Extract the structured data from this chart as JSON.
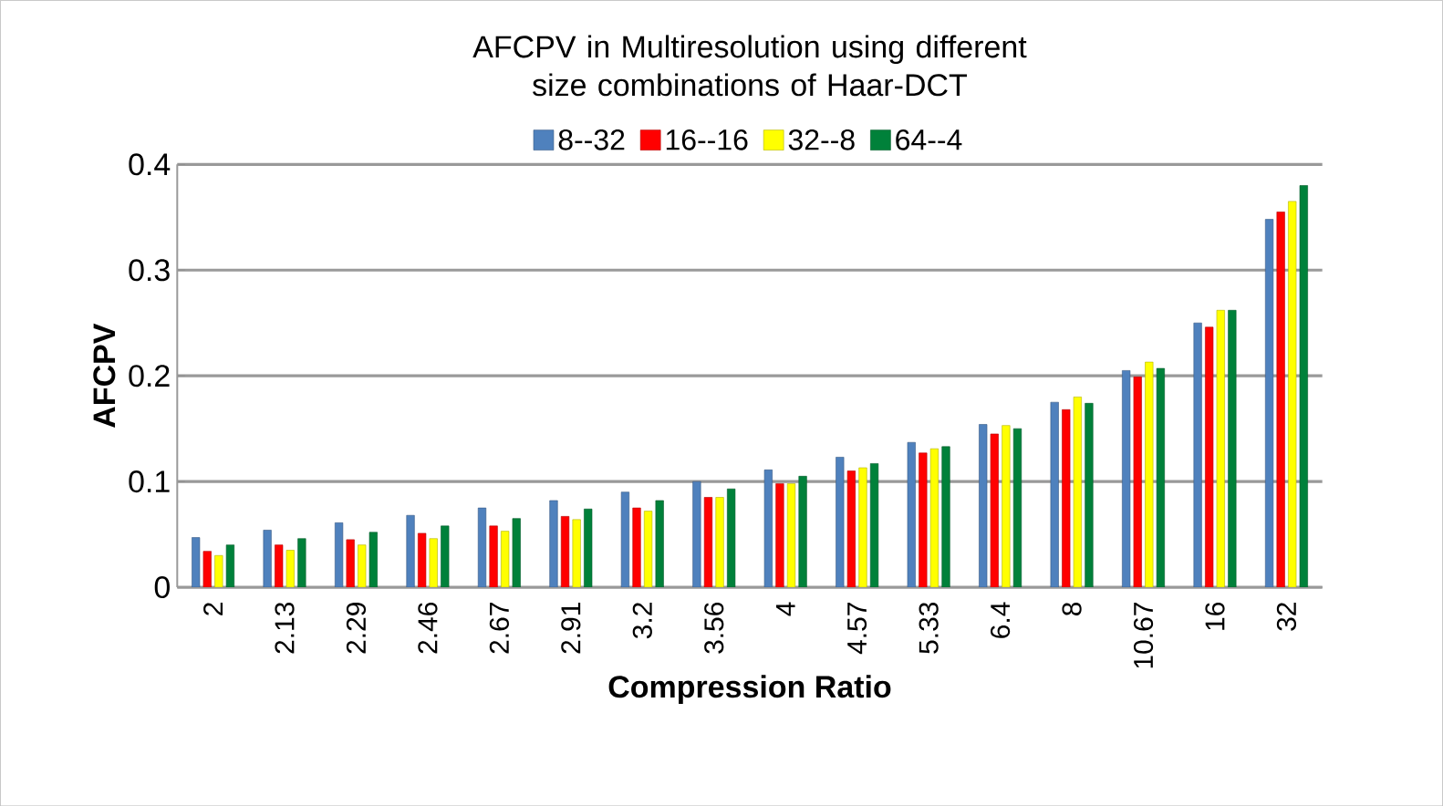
{
  "chart_data": {
    "type": "bar",
    "title": "AFCPV in Multiresolution using different size combinations of Haar-DCT",
    "xlabel": "Compression Ratio",
    "ylabel": "AFCPV",
    "categories": [
      "2",
      "2.13",
      "2.29",
      "2.46",
      "2.67",
      "2.91",
      "3.2",
      "3.56",
      "4",
      "4.57",
      "5.33",
      "6.4",
      "8",
      "10.67",
      "16",
      "32"
    ],
    "series": [
      {
        "name": "8--32",
        "color": "#4f81bd",
        "values": [
          0.047,
          0.054,
          0.061,
          0.068,
          0.075,
          0.082,
          0.09,
          0.1,
          0.111,
          0.123,
          0.137,
          0.154,
          0.175,
          0.205,
          0.25,
          0.348
        ]
      },
      {
        "name": "16--16",
        "color": "#ff0000",
        "values": [
          0.034,
          0.04,
          0.045,
          0.051,
          0.058,
          0.067,
          0.075,
          0.085,
          0.098,
          0.11,
          0.127,
          0.145,
          0.168,
          0.199,
          0.246,
          0.355
        ]
      },
      {
        "name": "32--8",
        "color": "#ffff00",
        "values": [
          0.03,
          0.035,
          0.04,
          0.046,
          0.053,
          0.064,
          0.072,
          0.085,
          0.098,
          0.113,
          0.131,
          0.153,
          0.18,
          0.213,
          0.262,
          0.365
        ]
      },
      {
        "name": "64--4",
        "color": "#00813a",
        "values": [
          0.04,
          0.046,
          0.052,
          0.058,
          0.065,
          0.074,
          0.082,
          0.093,
          0.105,
          0.117,
          0.133,
          0.15,
          0.174,
          0.207,
          0.262,
          0.38
        ]
      }
    ],
    "ylim": [
      0,
      0.4
    ],
    "yticks": [
      0,
      0.1,
      0.2,
      0.3,
      0.4
    ],
    "grid": "y",
    "legend": "top"
  }
}
